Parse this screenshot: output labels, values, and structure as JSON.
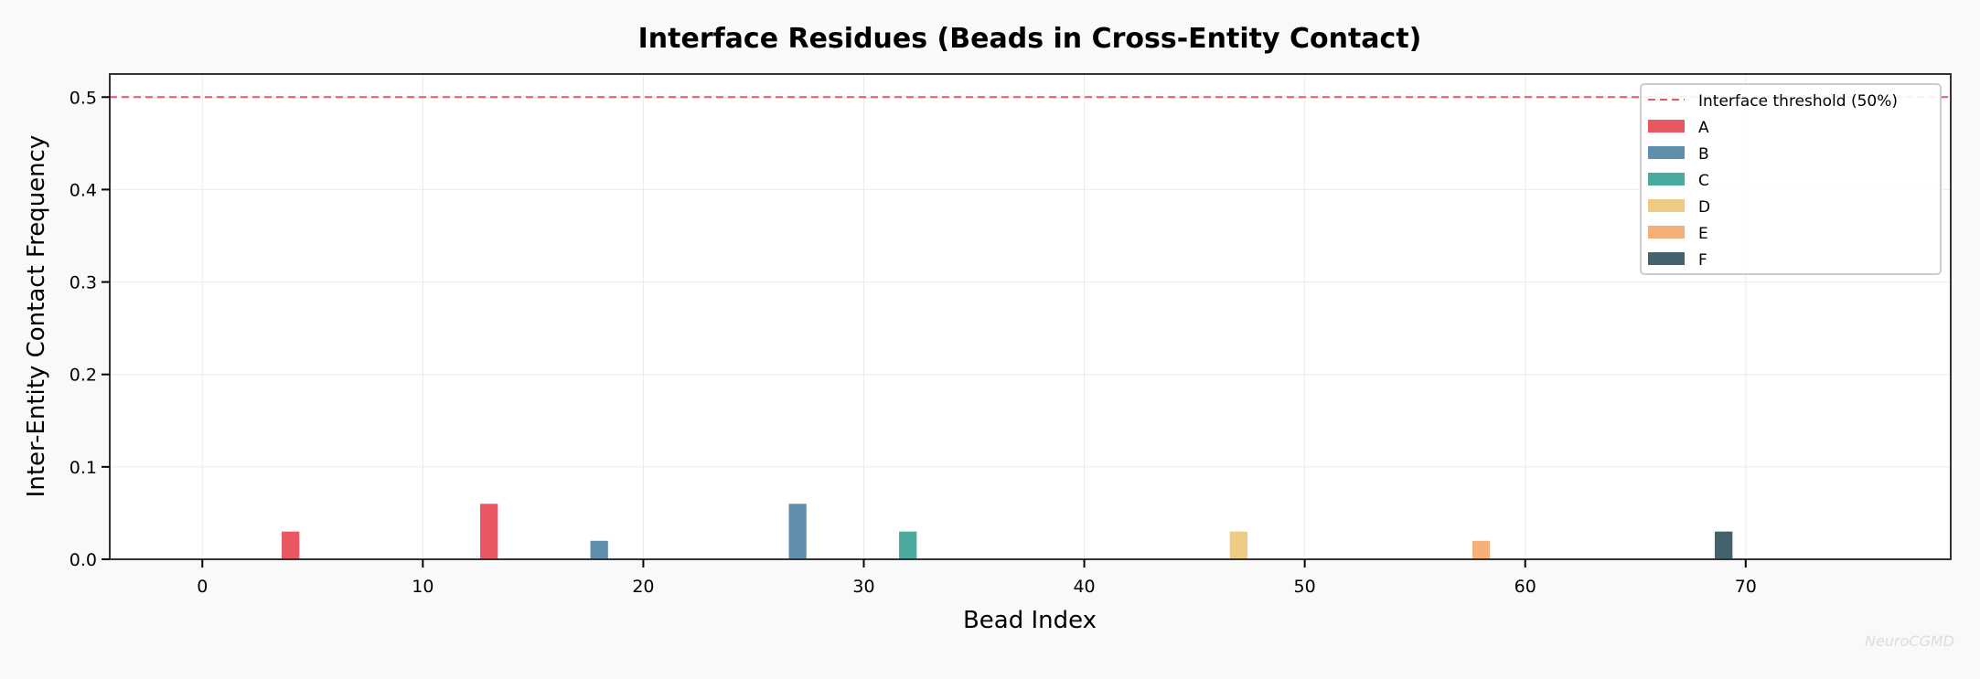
{
  "chart_data": {
    "type": "bar",
    "title": "Interface Residues (Beads in Cross-Entity Contact)",
    "xlabel": "Bead Index",
    "ylabel": "Inter-Entity Contact Frequency",
    "xlim": [
      -4.2,
      79.3
    ],
    "ylim": [
      0,
      0.525
    ],
    "xticks": [
      0,
      10,
      20,
      30,
      40,
      50,
      60,
      70
    ],
    "yticks": [
      0.0,
      0.1,
      0.2,
      0.3,
      0.4,
      0.5
    ],
    "grid": true,
    "threshold": {
      "value": 0.5,
      "label": "Interface threshold (50%)",
      "color": "#e85762"
    },
    "legend_position": "top-right",
    "series": [
      {
        "name": "A",
        "color": "#e85762",
        "x": [
          4,
          13
        ],
        "values": [
          0.03,
          0.06
        ]
      },
      {
        "name": "B",
        "color": "#5f8fad",
        "x": [
          18,
          27
        ],
        "values": [
          0.02,
          0.06
        ]
      },
      {
        "name": "C",
        "color": "#4aaa9e",
        "x": [
          32
        ],
        "values": [
          0.03
        ]
      },
      {
        "name": "D",
        "color": "#edcb82",
        "x": [
          47
        ],
        "values": [
          0.03
        ]
      },
      {
        "name": "E",
        "color": "#f4b07a",
        "x": [
          58
        ],
        "values": [
          0.02
        ]
      },
      {
        "name": "F",
        "color": "#44626c",
        "x": [
          69
        ],
        "values": [
          0.03
        ]
      }
    ]
  },
  "watermark": "NeuroCGMD"
}
